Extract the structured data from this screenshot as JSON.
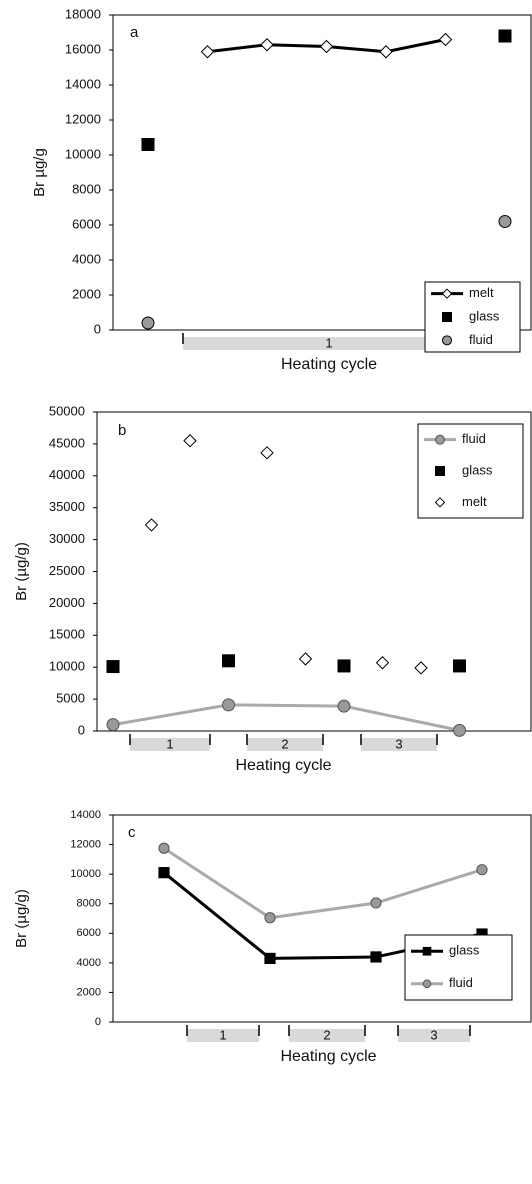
{
  "chart_data": [
    {
      "type": "line",
      "title": "a",
      "y_label": "Br µg/g",
      "x_label": "Heating cycle",
      "cycles": [
        "1"
      ],
      "legend": "lower right",
      "ylim": [
        0,
        18000
      ],
      "yticks": [
        0,
        2000,
        4000,
        6000,
        8000,
        10000,
        12000,
        14000,
        16000,
        18000
      ],
      "series": [
        {
          "name": "melt",
          "color": "#000000",
          "marker": "diamond",
          "marker_fill": "#ffffff",
          "line": true,
          "x": [
            1,
            2,
            3,
            4,
            5
          ],
          "values": [
            15900,
            16300,
            16200,
            15900,
            16600
          ]
        },
        {
          "name": "glass",
          "color": "#000000",
          "marker": "square",
          "marker_fill": "#000000",
          "line": false,
          "x": [
            0,
            6
          ],
          "values": [
            10600,
            16800
          ]
        },
        {
          "name": "fluid",
          "color": "#555555",
          "marker": "circle",
          "marker_fill": "#999999",
          "line": false,
          "x": [
            0,
            6
          ],
          "values": [
            400,
            6200
          ]
        }
      ]
    },
    {
      "type": "line",
      "title": "b",
      "y_label": "Br (µg/g)",
      "x_label": "Heating cycle",
      "cycles": [
        "1",
        "2",
        "3"
      ],
      "legend": "upper right",
      "ylim": [
        0,
        50000
      ],
      "yticks": [
        0,
        5000,
        10000,
        15000,
        20000,
        25000,
        30000,
        35000,
        40000,
        45000,
        50000
      ],
      "series": [
        {
          "name": "fluid",
          "color": "#aaaaaa",
          "marker": "circle",
          "marker_fill": "#999999",
          "line": true,
          "x": [
            0,
            3,
            6,
            9
          ],
          "values": [
            1000,
            4100,
            3900,
            100
          ]
        },
        {
          "name": "glass",
          "color": "#000000",
          "marker": "square",
          "marker_fill": "#000000",
          "line": false,
          "x": [
            0,
            3,
            6,
            9
          ],
          "values": [
            10100,
            11000,
            10200,
            10200
          ]
        },
        {
          "name": "melt",
          "color": "#000000",
          "marker": "diamond",
          "marker_fill": "#ffffff",
          "line": false,
          "x": [
            1,
            2,
            4,
            5,
            7,
            8
          ],
          "values": [
            32300,
            45500,
            43600,
            11300,
            10700,
            9900
          ]
        }
      ]
    },
    {
      "type": "line",
      "title": "c",
      "y_label": "Br (µg/g)",
      "x_label": "Heating cycle",
      "cycles": [
        "1",
        "2",
        "3"
      ],
      "legend": "lower right",
      "ylim": [
        0,
        14000
      ],
      "yticks": [
        0,
        2000,
        4000,
        6000,
        8000,
        10000,
        12000,
        14000
      ],
      "series": [
        {
          "name": "glass",
          "color": "#000000",
          "marker": "square",
          "marker_fill": "#000000",
          "line": true,
          "x": [
            0,
            1,
            2,
            3
          ],
          "values": [
            10100,
            4300,
            4400,
            5950
          ]
        },
        {
          "name": "fluid",
          "color": "#aaaaaa",
          "marker": "circle",
          "marker_fill": "#999999",
          "line": true,
          "x": [
            0,
            1,
            2,
            3
          ],
          "values": [
            11750,
            7050,
            8050,
            10300
          ]
        }
      ]
    }
  ]
}
